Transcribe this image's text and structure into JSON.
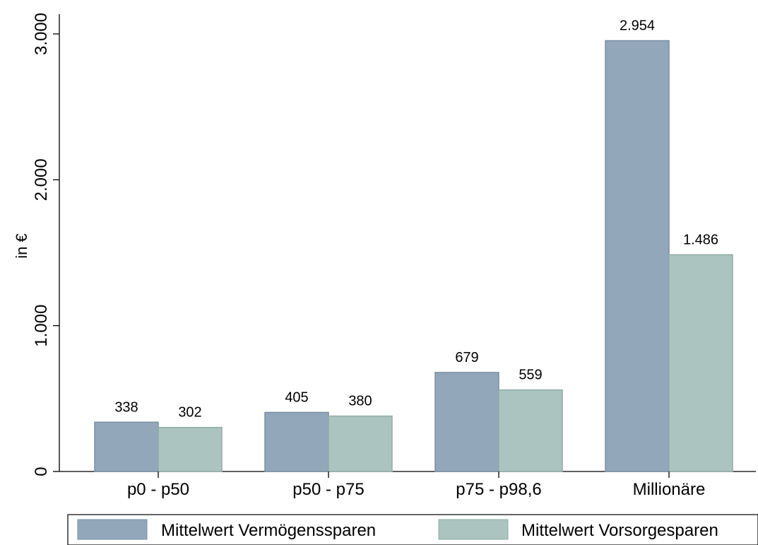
{
  "chart_data": {
    "type": "bar",
    "title": "",
    "xlabel": "",
    "ylabel": "in €",
    "ylim": [
      0,
      3000
    ],
    "yticks": [
      0,
      1000,
      2000,
      3000
    ],
    "ytick_labels": [
      "0",
      "1.000",
      "2.000",
      "3.000"
    ],
    "grid": false,
    "legend_position": "bottom",
    "categories": [
      "p0 - p50",
      "p50 - p75",
      "p75 - p98,6",
      "Millionäre"
    ],
    "series": [
      {
        "name": "Mittelwert Vermögenssparen",
        "color": "#93a7ba",
        "values": [
          338,
          405,
          679,
          2954
        ],
        "labels": [
          "338",
          "405",
          "679",
          "2.954"
        ]
      },
      {
        "name": "Mittelwert Vorsorgesparen",
        "color": "#abc4bf",
        "values": [
          302,
          380,
          559,
          1486
        ],
        "labels": [
          "302",
          "380",
          "559",
          "1.486"
        ]
      }
    ]
  }
}
